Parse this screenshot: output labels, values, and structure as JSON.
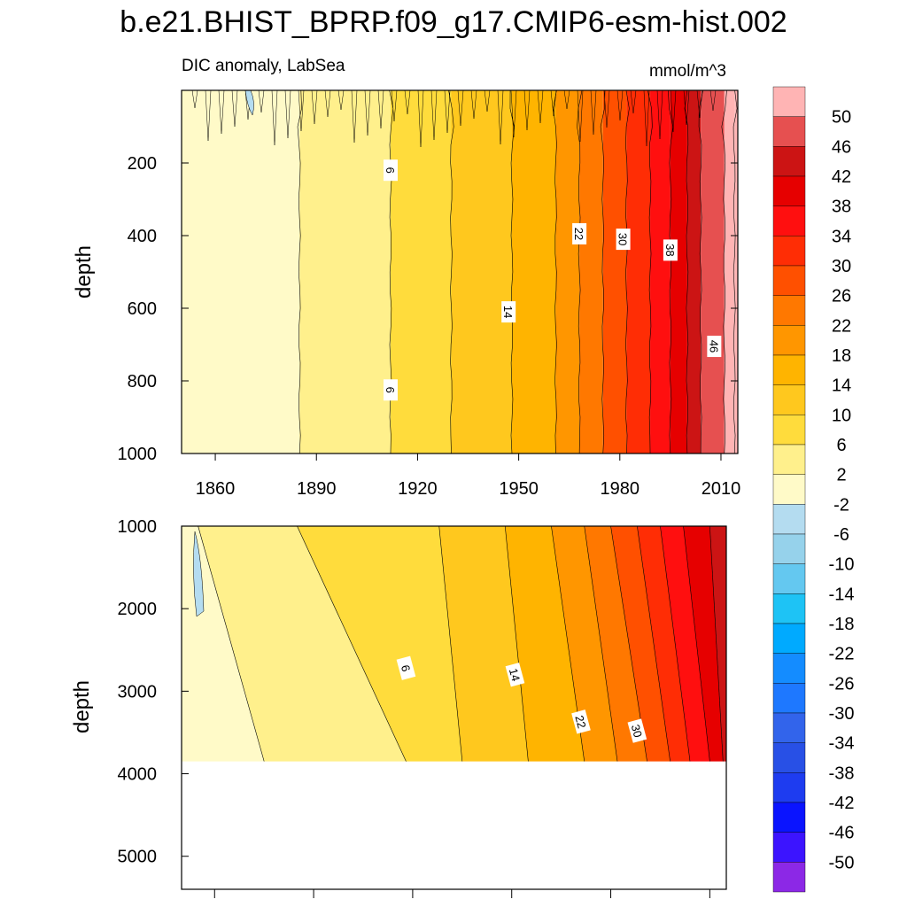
{
  "title": "b.e21.BHIST_BPRP.f09_g17.CMIP6-esm-hist.002",
  "chart_data": [
    {
      "type": "heatmap",
      "name": "upper",
      "subtitle_left": "DIC anomaly, LabSea",
      "subtitle_right": "mmol/m^3",
      "ylabel": "depth",
      "xlim": [
        1850,
        2015
      ],
      "ylim": [
        0,
        1000
      ],
      "x_ticks": [
        "1860",
        "1890",
        "1920",
        "1950",
        "1980",
        "2010"
      ],
      "x_tick_values": [
        1860,
        1890,
        1920,
        1950,
        1980,
        2010
      ],
      "y_ticks": [
        "200",
        "400",
        "600",
        "800",
        "1000"
      ],
      "y_tick_values": [
        200,
        400,
        600,
        800,
        1000
      ],
      "contour_years": [
        1885,
        1912,
        1930,
        1948,
        1961,
        1968,
        1975,
        1982,
        1989,
        1995,
        2000,
        2004,
        2011,
        2014
      ],
      "contour_labels": [
        {
          "text": "6",
          "year": 1912,
          "depth": 220
        },
        {
          "text": "22",
          "year": 1968,
          "depth": 395
        },
        {
          "text": "30",
          "year": 1981,
          "depth": 410
        },
        {
          "text": "38",
          "year": 1995,
          "depth": 440
        },
        {
          "text": "14",
          "year": 1947,
          "depth": 610
        },
        {
          "text": "46",
          "year": 2008,
          "depth": 705
        },
        {
          "text": "6",
          "year": 1912,
          "depth": 825
        }
      ]
    },
    {
      "type": "heatmap",
      "name": "lower",
      "ylabel": "depth",
      "xlim": [
        1850,
        2015
      ],
      "ylim": [
        1000,
        5400
      ],
      "ocean_floor_depth": 3850,
      "y_ticks": [
        "1000",
        "2000",
        "3000",
        "4000",
        "5000"
      ],
      "y_tick_values": [
        1000,
        2000,
        3000,
        4000,
        5000
      ],
      "contour_labels": [
        {
          "text": "6",
          "year": 1918,
          "depth": 2720
        },
        {
          "text": "14",
          "year": 1951,
          "depth": 2800
        },
        {
          "text": "22",
          "year": 1971,
          "depth": 3370
        },
        {
          "text": "30",
          "year": 1988,
          "depth": 3480
        }
      ]
    },
    {
      "type": "colorbar",
      "name": "legend",
      "levels": [
        "50",
        "46",
        "42",
        "38",
        "34",
        "30",
        "26",
        "22",
        "18",
        "14",
        "10",
        "6",
        "2",
        "-2",
        "-6",
        "-10",
        "-14",
        "-18",
        "-22",
        "-26",
        "-30",
        "-34",
        "-38",
        "-42",
        "-46",
        "-50"
      ],
      "colors": [
        "#ffb4b4",
        "#e65050",
        "#cc1414",
        "#e60000",
        "#ff0f0f",
        "#ff2d05",
        "#ff5000",
        "#ff7800",
        "#ff9600",
        "#ffb400",
        "#ffc81e",
        "#ffdc3c",
        "#fff08c",
        "#fffac8",
        "#b4dcf0",
        "#96d2eb",
        "#64c8f0",
        "#1ec3f5",
        "#00aaff",
        "#148cff",
        "#1e78ff",
        "#3264eb",
        "#2850e6",
        "#1e3cf0",
        "#0a14ff",
        "#3c14ff",
        "#8c28e6"
      ]
    }
  ]
}
